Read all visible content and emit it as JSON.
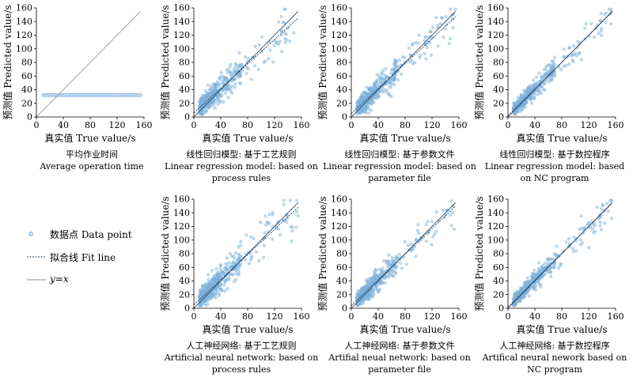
{
  "charts": [
    {
      "title_zh": "平均作业时间",
      "title_en": [
        "Average operation time"
      ]
    },
    {
      "title_zh": "线性回归模型: 基于工艺规则",
      "title_en": [
        "Linear regression model: based on",
        "process rules"
      ]
    },
    {
      "title_zh": "线性回归模型: 基于参数文件",
      "title_en": [
        "Linear regression model: based on",
        "parameter file"
      ]
    },
    {
      "title_zh": "线性回归模型: 基于数控程序",
      "title_en": [
        "Linear regression model: based",
        "on NC program"
      ]
    },
    {
      "title_zh": "人工神经网络: 基于工艺规则",
      "title_en": [
        "Artificial neural network: based on",
        "process rules"
      ]
    },
    {
      "title_zh": "人工神经网络: 基于参数文件",
      "title_en": [
        "Artifial neual network: based on",
        "parameter file"
      ]
    },
    {
      "title_zh": "人工神经网络: 基于数控程序",
      "title_en": [
        "Artifical neural nework based on",
        "NC program"
      ]
    }
  ],
  "axes": {
    "xlabel": "真实值 True value/s",
    "ylabel": "预测值 Predicted value/s"
  },
  "legend": {
    "data_point": "数据点 Data point",
    "fit_line": "拟合线 Fit line",
    "identity": "y=x"
  },
  "colors": {
    "points": "#7fb2dc",
    "fit": "#1f3c5a",
    "identity": "#8c8c8c"
  },
  "chart_data": [
    {
      "type": "scatter",
      "xlim": [
        0,
        160
      ],
      "ylim": [
        0,
        160
      ],
      "xticks": [
        0,
        40,
        80,
        120,
        160
      ],
      "yticks": [
        0,
        20,
        40,
        60,
        80,
        100,
        120,
        140,
        160
      ],
      "series": [
        {
          "name": "数据点 Data point",
          "x_range": [
            10,
            155
          ],
          "y_constant": 32
        },
        {
          "name": "y=x",
          "x": [
            0,
            155
          ],
          "y": [
            0,
            155
          ]
        }
      ]
    },
    {
      "type": "scatter",
      "xlim": [
        0,
        160
      ],
      "ylim": [
        0,
        160
      ],
      "xticks": [
        0,
        40,
        80,
        120,
        160
      ],
      "yticks": [
        0,
        20,
        40,
        60,
        80,
        100,
        120,
        140,
        160
      ],
      "series": [
        {
          "name": "数据点 Data point",
          "x_range": [
            5,
            155
          ]
        },
        {
          "name": "拟合线 Fit line",
          "x": [
            0,
            155
          ],
          "y": [
            6,
            145
          ]
        },
        {
          "name": "y=x",
          "x": [
            0,
            155
          ],
          "y": [
            0,
            155
          ]
        }
      ]
    },
    {
      "type": "scatter",
      "xlim": [
        0,
        160
      ],
      "ylim": [
        0,
        160
      ],
      "xticks": [
        0,
        40,
        80,
        120,
        160
      ],
      "yticks": [
        0,
        20,
        40,
        60,
        80,
        100,
        120,
        140,
        160
      ],
      "series": [
        {
          "name": "数据点 Data point",
          "x_range": [
            5,
            155
          ]
        },
        {
          "name": "拟合线 Fit line",
          "x": [
            0,
            155
          ],
          "y": [
            5,
            147
          ]
        },
        {
          "name": "y=x",
          "x": [
            0,
            155
          ],
          "y": [
            0,
            155
          ]
        }
      ]
    },
    {
      "type": "scatter",
      "xlim": [
        0,
        160
      ],
      "ylim": [
        0,
        160
      ],
      "xticks": [
        0,
        40,
        80,
        120,
        160
      ],
      "yticks": [
        0,
        20,
        40,
        60,
        80,
        100,
        120,
        140,
        160
      ],
      "series": [
        {
          "name": "数据点 Data point",
          "x_range": [
            5,
            155
          ]
        },
        {
          "name": "拟合线 Fit line",
          "x": [
            0,
            155
          ],
          "y": [
            2,
            154
          ]
        },
        {
          "name": "y=x",
          "x": [
            0,
            155
          ],
          "y": [
            0,
            155
          ]
        }
      ]
    },
    {
      "type": "scatter",
      "xlim": [
        0,
        160
      ],
      "ylim": [
        0,
        160
      ],
      "xticks": [
        0,
        40,
        80,
        120,
        160
      ],
      "yticks": [
        0,
        20,
        40,
        60,
        80,
        100,
        120,
        140,
        160
      ],
      "series": [
        {
          "name": "数据点 Data point",
          "x_range": [
            5,
            155
          ]
        },
        {
          "name": "拟合线 Fit line",
          "x": [
            0,
            155
          ],
          "y": [
            5,
            148
          ]
        },
        {
          "name": "y=x",
          "x": [
            0,
            155
          ],
          "y": [
            0,
            155
          ]
        }
      ]
    },
    {
      "type": "scatter",
      "xlim": [
        0,
        160
      ],
      "ylim": [
        0,
        160
      ],
      "xticks": [
        0,
        40,
        80,
        120,
        160
      ],
      "yticks": [
        0,
        20,
        40,
        60,
        80,
        100,
        120,
        140,
        160
      ],
      "series": [
        {
          "name": "数据点 Data point",
          "x_range": [
            5,
            155
          ]
        },
        {
          "name": "拟合线 Fit line",
          "x": [
            0,
            155
          ],
          "y": [
            4,
            150
          ]
        },
        {
          "name": "y=x",
          "x": [
            0,
            155
          ],
          "y": [
            0,
            155
          ]
        }
      ]
    },
    {
      "type": "scatter",
      "xlim": [
        0,
        160
      ],
      "ylim": [
        0,
        160
      ],
      "xticks": [
        0,
        40,
        80,
        120,
        160
      ],
      "yticks": [
        0,
        20,
        40,
        60,
        80,
        100,
        120,
        140,
        160
      ],
      "series": [
        {
          "name": "数据点 Data point",
          "x_range": [
            5,
            155
          ]
        },
        {
          "name": "拟合线 Fit line",
          "x": [
            0,
            155
          ],
          "y": [
            2,
            154
          ]
        },
        {
          "name": "y=x",
          "x": [
            0,
            155
          ],
          "y": [
            0,
            155
          ]
        }
      ]
    }
  ]
}
